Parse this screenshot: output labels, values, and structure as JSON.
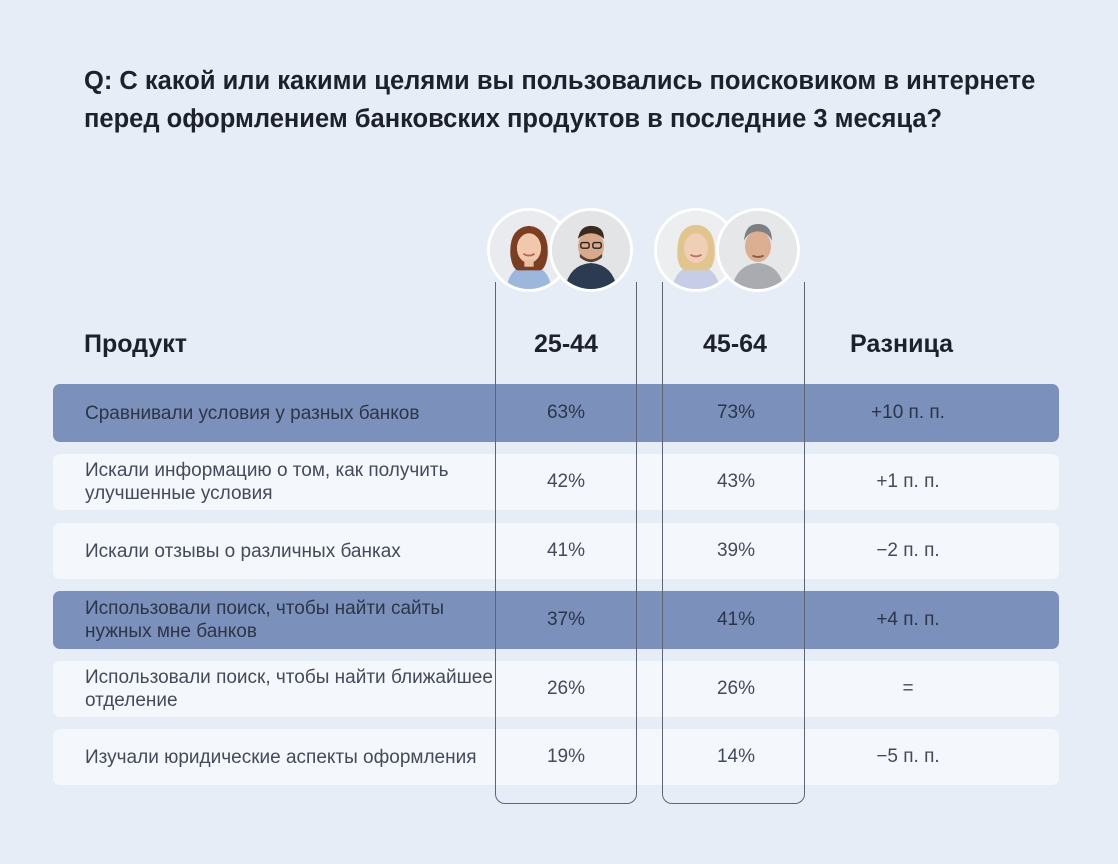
{
  "question": "Q: С какой или какими целями вы пользовались поисковиком в интернете перед оформлением банковских продуктов в последние 3 месяца?",
  "colors": {
    "background": "#e6edf7",
    "row": "#f4f7fc",
    "row_highlight": "#7b90bb"
  },
  "chart_data": {
    "type": "table",
    "columns": [
      "Продукт",
      "25-44",
      "45-64",
      "Разница"
    ],
    "rows": [
      {
        "label": "Сравнивали условия у разных банков",
        "young": "63%",
        "old": "73%",
        "diff": "+10 п. п.",
        "highlight": true
      },
      {
        "label": "Искали информацию о том, как получить улучшенные условия",
        "young": "42%",
        "old": "43%",
        "diff": "+1 п. п.",
        "highlight": false
      },
      {
        "label": "Искали отзывы о различных банках",
        "young": "41%",
        "old": "39%",
        "diff": "−2 п. п.",
        "highlight": false
      },
      {
        "label": "Использовали поиск, чтобы найти сайты нужных мне банков",
        "young": "37%",
        "old": "41%",
        "diff": "+4 п. п.",
        "highlight": true
      },
      {
        "label": "Использовали поиск, чтобы найти ближайшее отделение",
        "young": "26%",
        "old": "26%",
        "diff": "=",
        "highlight": false
      },
      {
        "label": "Изучали юридические аспекты оформления",
        "young": "19%",
        "old": "14%",
        "diff": "−5 п. п.",
        "highlight": false
      }
    ]
  }
}
